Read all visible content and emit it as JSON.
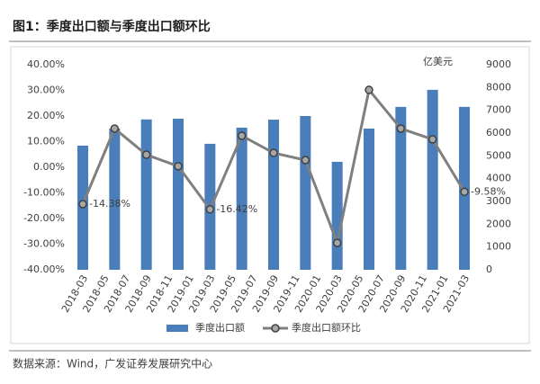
{
  "title": "图1：季度出口额与季度出口额环比",
  "source": "数据来源：Wind，广发证券发展研究中心",
  "chart_data": {
    "type": "bar_line",
    "y2_label": "亿美元",
    "categories": [
      "2018-03",
      null,
      "2018-05",
      null,
      "2018-07",
      null,
      "2018-09",
      null,
      "2018-11",
      null,
      "2019-01",
      null,
      "2019-03",
      null,
      "2019-05",
      null,
      "2019-07",
      null,
      "2019-09",
      null,
      "2019-11",
      null,
      "2020-01",
      null,
      "2020-03",
      null,
      "2020-05",
      null,
      "2020-07",
      null,
      "2020-09",
      null,
      "2020-11",
      null,
      "2021-01",
      null,
      "2021-03"
    ],
    "series": [
      {
        "name": "季度出口额",
        "type": "bar",
        "axis": "y2",
        "color": "#4a7ebb",
        "values": [
          5450,
          null,
          null,
          6200,
          null,
          null,
          6600,
          null,
          null,
          6630,
          null,
          null,
          5530,
          null,
          null,
          6240,
          null,
          null,
          6590,
          null,
          null,
          6750,
          null,
          null,
          4740,
          null,
          null,
          6200,
          null,
          null,
          7150,
          null,
          null,
          7900,
          null,
          null,
          7150
        ]
      },
      {
        "name": "季度出口额环比",
        "type": "line",
        "axis": "y",
        "color": "#7f7f7f",
        "values": [
          -14.38,
          null,
          null,
          15.1,
          null,
          null,
          4.9,
          null,
          null,
          0.4,
          null,
          null,
          -16.42,
          null,
          null,
          12.3,
          null,
          null,
          5.6,
          null,
          null,
          2.8,
          null,
          null,
          -29.5,
          null,
          null,
          30.2,
          null,
          null,
          15.1,
          null,
          null,
          10.9,
          null,
          null,
          -9.58
        ],
        "value_labels": [
          "-14.38%",
          null,
          null,
          null,
          null,
          null,
          null,
          null,
          null,
          null,
          null,
          null,
          "-16.42%",
          null,
          null,
          null,
          null,
          null,
          null,
          null,
          null,
          null,
          null,
          null,
          null,
          null,
          null,
          null,
          null,
          null,
          null,
          null,
          null,
          null,
          null,
          null,
          "-9.58%"
        ]
      }
    ],
    "ylim": [
      -40,
      40
    ],
    "yticks": [
      {
        "value": -40,
        "label": "-40.00%"
      },
      {
        "value": -30,
        "label": "-30.00%"
      },
      {
        "value": -20,
        "label": "-20.00%"
      },
      {
        "value": -10,
        "label": "-10.00%"
      },
      {
        "value": 0,
        "label": "0.00%"
      },
      {
        "value": 10,
        "label": "10.00%"
      },
      {
        "value": 20,
        "label": "20.00%"
      },
      {
        "value": 30,
        "label": "30.00%"
      },
      {
        "value": 40,
        "label": "40.00%"
      }
    ],
    "y2lim": [
      0,
      9000
    ],
    "y2ticks": [
      0,
      1000,
      2000,
      3000,
      4000,
      5000,
      6000,
      7000,
      8000,
      9000
    ],
    "legend": "bottom"
  }
}
